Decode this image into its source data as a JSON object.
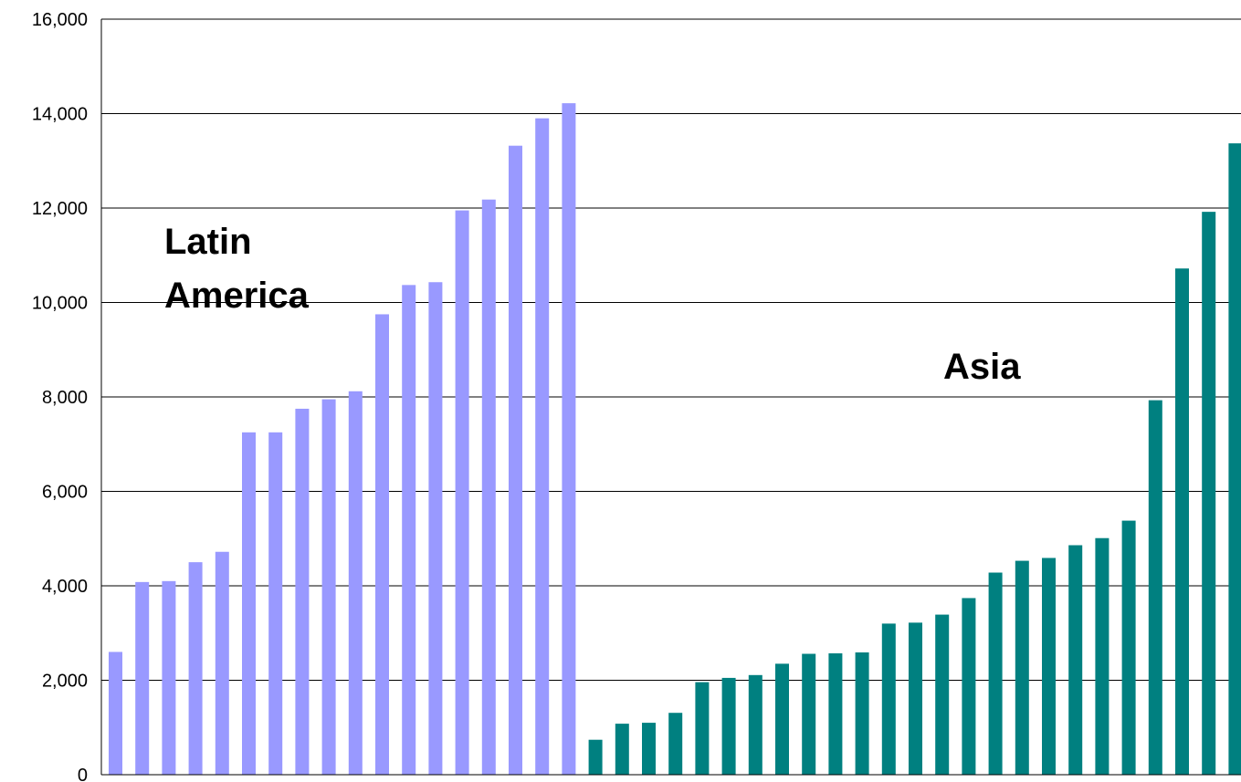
{
  "chart_data": {
    "type": "bar",
    "title": "",
    "xlabel": "",
    "ylabel": "",
    "ylim": [
      0,
      16000
    ],
    "yticks": [
      0,
      2000,
      4000,
      6000,
      8000,
      10000,
      12000,
      14000,
      16000
    ],
    "ytick_labels": [
      "0",
      "2,000",
      "4,000",
      "6,000",
      "8,000",
      "10,000",
      "12,000",
      "14,000",
      "16,000"
    ],
    "grid": true,
    "legend": "none",
    "annotations": [
      {
        "text": "Latin",
        "series": "latin_america"
      },
      {
        "text": "America",
        "series": "latin_america"
      },
      {
        "text": "Asia",
        "series": "asia"
      }
    ],
    "series": [
      {
        "key": "latin_america",
        "color": "#9999ff",
        "values": [
          2600,
          4080,
          4100,
          4500,
          4720,
          7250,
          7250,
          7750,
          7950,
          8120,
          9750,
          10370,
          10430,
          11950,
          12180,
          13320,
          13900,
          14220
        ]
      },
      {
        "key": "asia",
        "color": "#008080",
        "values": [
          740,
          1080,
          1100,
          1310,
          1960,
          2050,
          2110,
          2350,
          2560,
          2570,
          2590,
          3200,
          3220,
          3390,
          3740,
          4280,
          4530,
          4590,
          4860,
          5010,
          5380,
          7930,
          10720,
          11920,
          13370
        ]
      }
    ]
  }
}
